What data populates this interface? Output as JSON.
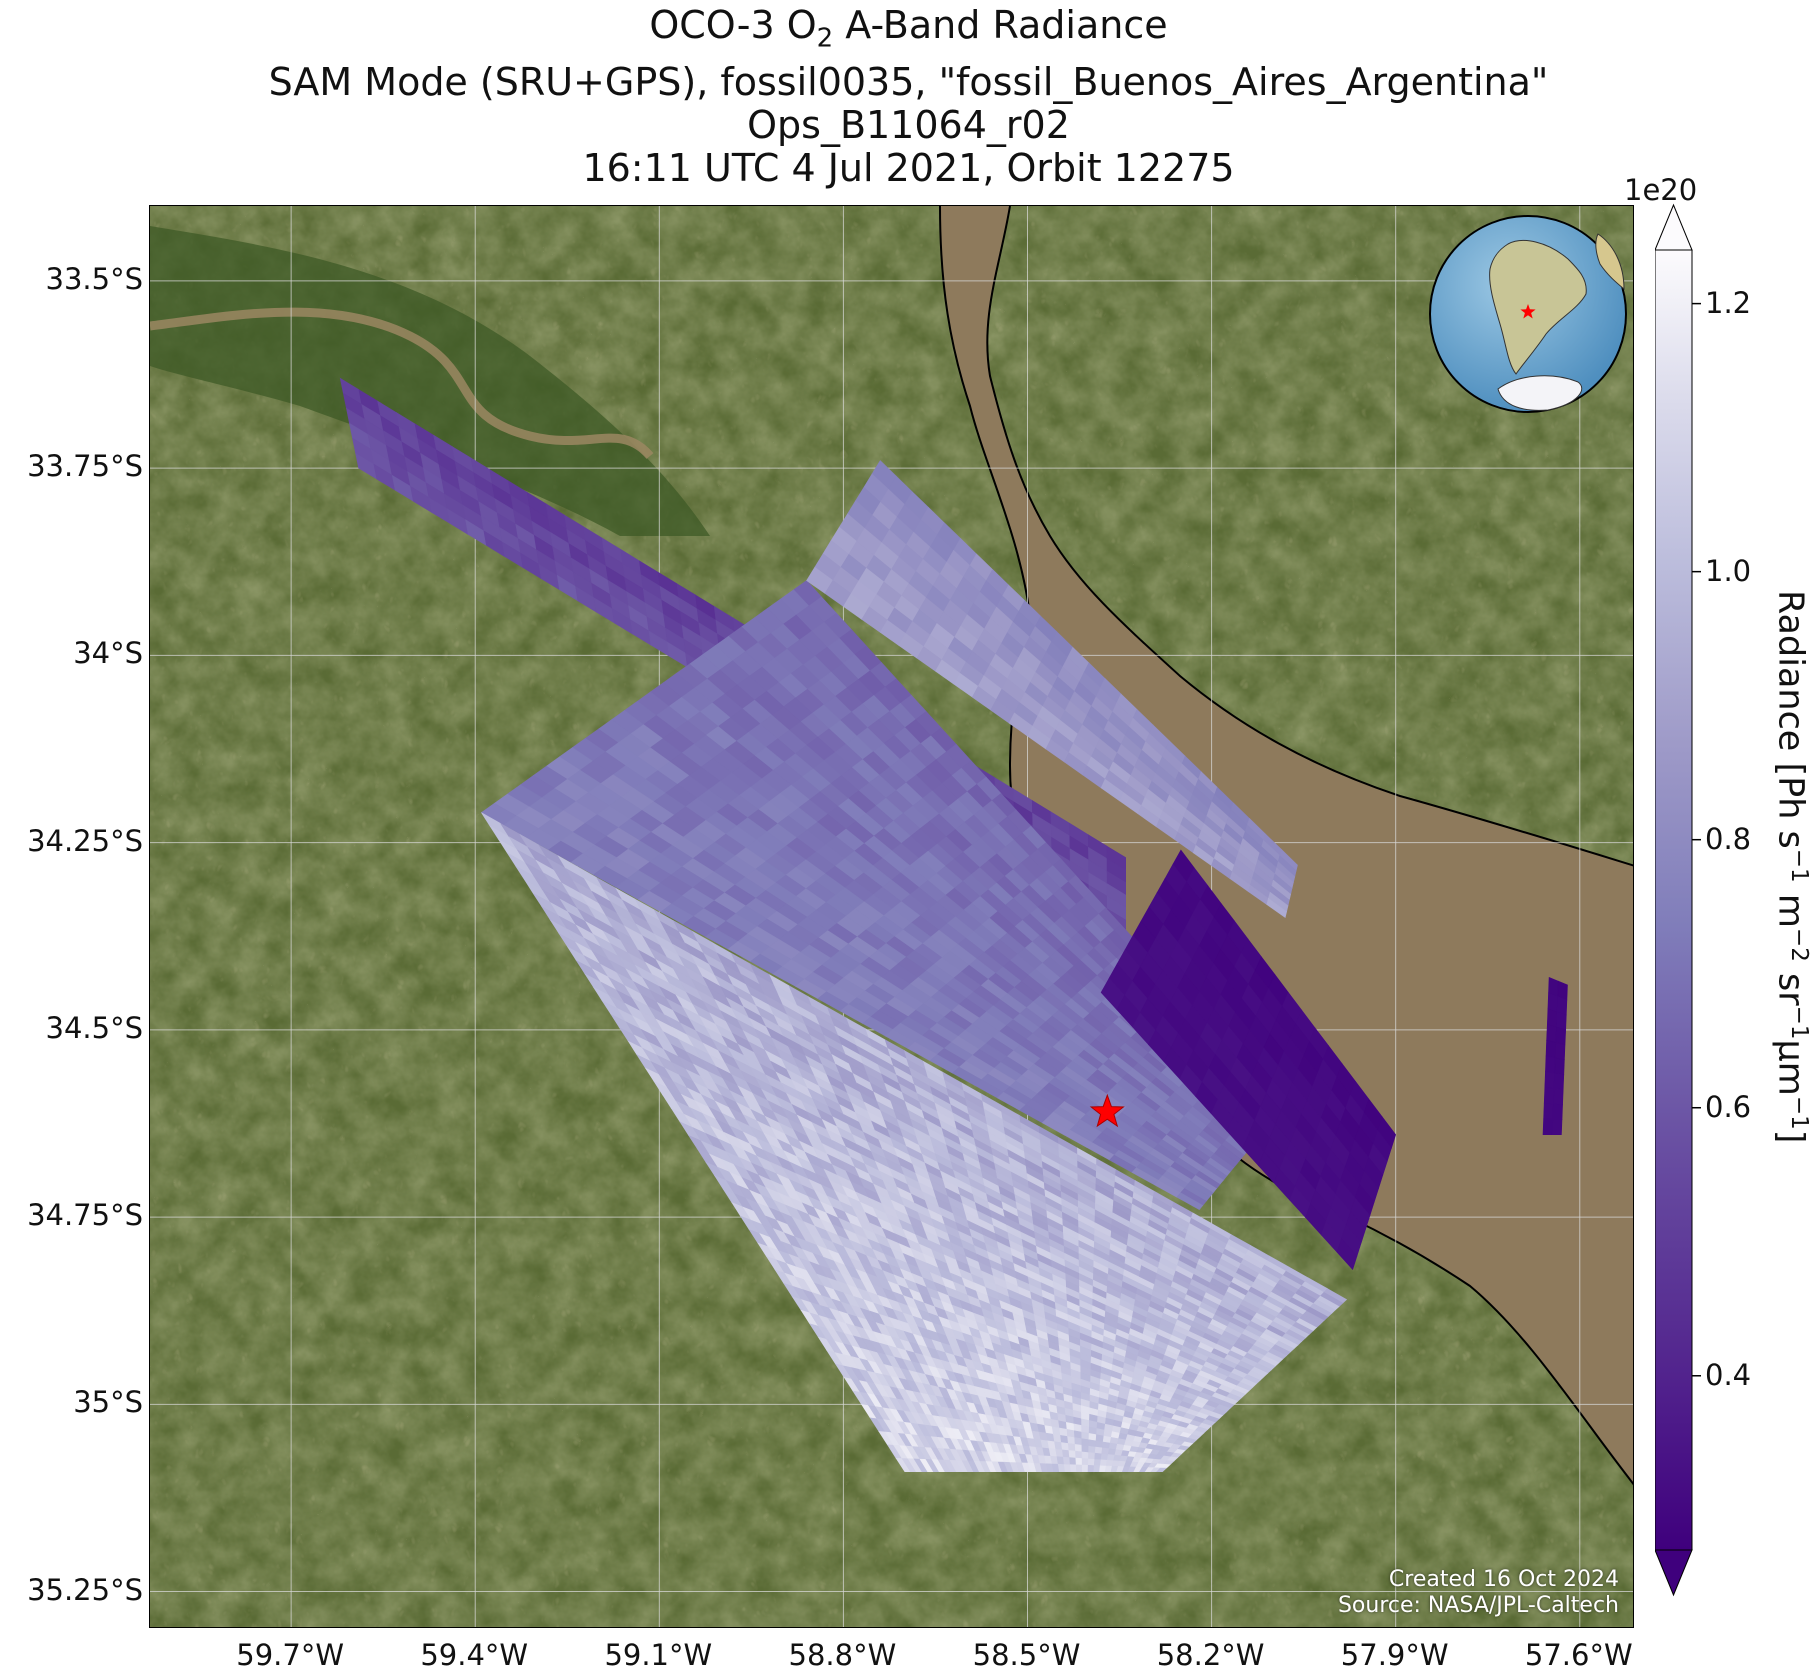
{
  "title": {
    "line1_prefix": "OCO-3 O",
    "line1_sub": "2",
    "line1_suffix": " A-Band Radiance",
    "line2": "SAM Mode (SRU+GPS), fossil0035, \"fossil_Buenos_Aires_Argentina\"",
    "line3": "Ops_B11064_r02",
    "line4": "16:11 UTC 4 Jul 2021, Orbit 12275"
  },
  "map": {
    "lat_ticks": [
      "33.5°S",
      "33.75°S",
      "34°S",
      "34.25°S",
      "34.5°S",
      "34.75°S",
      "35°S",
      "35.25°S"
    ],
    "lon_ticks": [
      "59.7°W",
      "59.4°W",
      "59.1°W",
      "58.8°W",
      "58.5°W",
      "58.2°W",
      "57.9°W",
      "57.6°W"
    ],
    "lat_values": [
      -33.5,
      -33.75,
      -34.0,
      -34.25,
      -34.5,
      -34.75,
      -35.0,
      -35.25
    ],
    "lon_values": [
      -59.7,
      -59.4,
      -59.1,
      -58.8,
      -58.5,
      -58.2,
      -57.9,
      -57.6
    ],
    "extent": {
      "lon": [
        -59.93,
        -57.51
      ],
      "lat": [
        -35.3,
        -33.4
      ]
    },
    "target": {
      "lon": -58.37,
      "lat": -34.61
    },
    "target_marker_color": "#ff0000",
    "grid": true,
    "credits_line1": "Created 16 Oct 2024",
    "credits_line2": "Source: NASA/JPL-Caltech"
  },
  "colorbar": {
    "exponent": "1e20",
    "ticks": [
      "0.4",
      "0.6",
      "0.8",
      "1.0",
      "1.2"
    ],
    "tick_values": [
      0.4,
      0.6,
      0.8,
      1.0,
      1.2
    ],
    "range": [
      0.27,
      1.24
    ],
    "label_prefix": "Radiance [Ph s",
    "colormap": "Purples_r",
    "extend": "both"
  },
  "chart_data": {
    "type": "heatmap",
    "title": "OCO-3 O2 A-Band Radiance",
    "xlabel": "",
    "ylabel": "",
    "xlim": [
      -59.93,
      -57.51
    ],
    "ylim": [
      -35.3,
      -33.4
    ],
    "value_units": "1e20 Ph s^-1 m^-2 sr^-1 µm^-1",
    "swaths": [
      {
        "corners_lonlat": [
          [
            -59.62,
            -33.63
          ],
          [
            -59.59,
            -33.75
          ],
          [
            -58.34,
            -34.37
          ],
          [
            -58.34,
            -34.27
          ]
        ],
        "value_range": [
          0.45,
          0.65
        ]
      },
      {
        "corners_lonlat": [
          [
            -58.86,
            -33.9
          ],
          [
            -59.39,
            -34.21
          ],
          [
            -58.22,
            -34.74
          ],
          [
            -58.08,
            -34.6
          ]
        ],
        "value_range": [
          0.62,
          0.8
        ]
      },
      {
        "corners_lonlat": [
          [
            -58.74,
            -33.74
          ],
          [
            -58.86,
            -33.9
          ],
          [
            -58.08,
            -34.35
          ],
          [
            -58.06,
            -34.28
          ]
        ],
        "value_range": [
          0.75,
          0.95
        ]
      },
      {
        "corners_lonlat": [
          [
            -58.25,
            -34.26
          ],
          [
            -58.38,
            -34.45
          ],
          [
            -57.97,
            -34.82
          ],
          [
            -57.9,
            -34.64
          ]
        ],
        "value_range": [
          0.28,
          0.34
        ]
      },
      {
        "corners_lonlat": [
          [
            -59.39,
            -34.21
          ],
          [
            -58.7,
            -35.09
          ],
          [
            -58.28,
            -35.09
          ],
          [
            -57.98,
            -34.86
          ]
        ],
        "value_range": [
          0.85,
          1.2
        ]
      },
      {
        "corners_lonlat": [
          [
            -57.65,
            -34.43
          ],
          [
            -57.66,
            -34.64
          ],
          [
            -57.63,
            -34.64
          ],
          [
            -57.62,
            -34.44
          ]
        ],
        "value_range": [
          0.28,
          0.3
        ]
      }
    ]
  }
}
